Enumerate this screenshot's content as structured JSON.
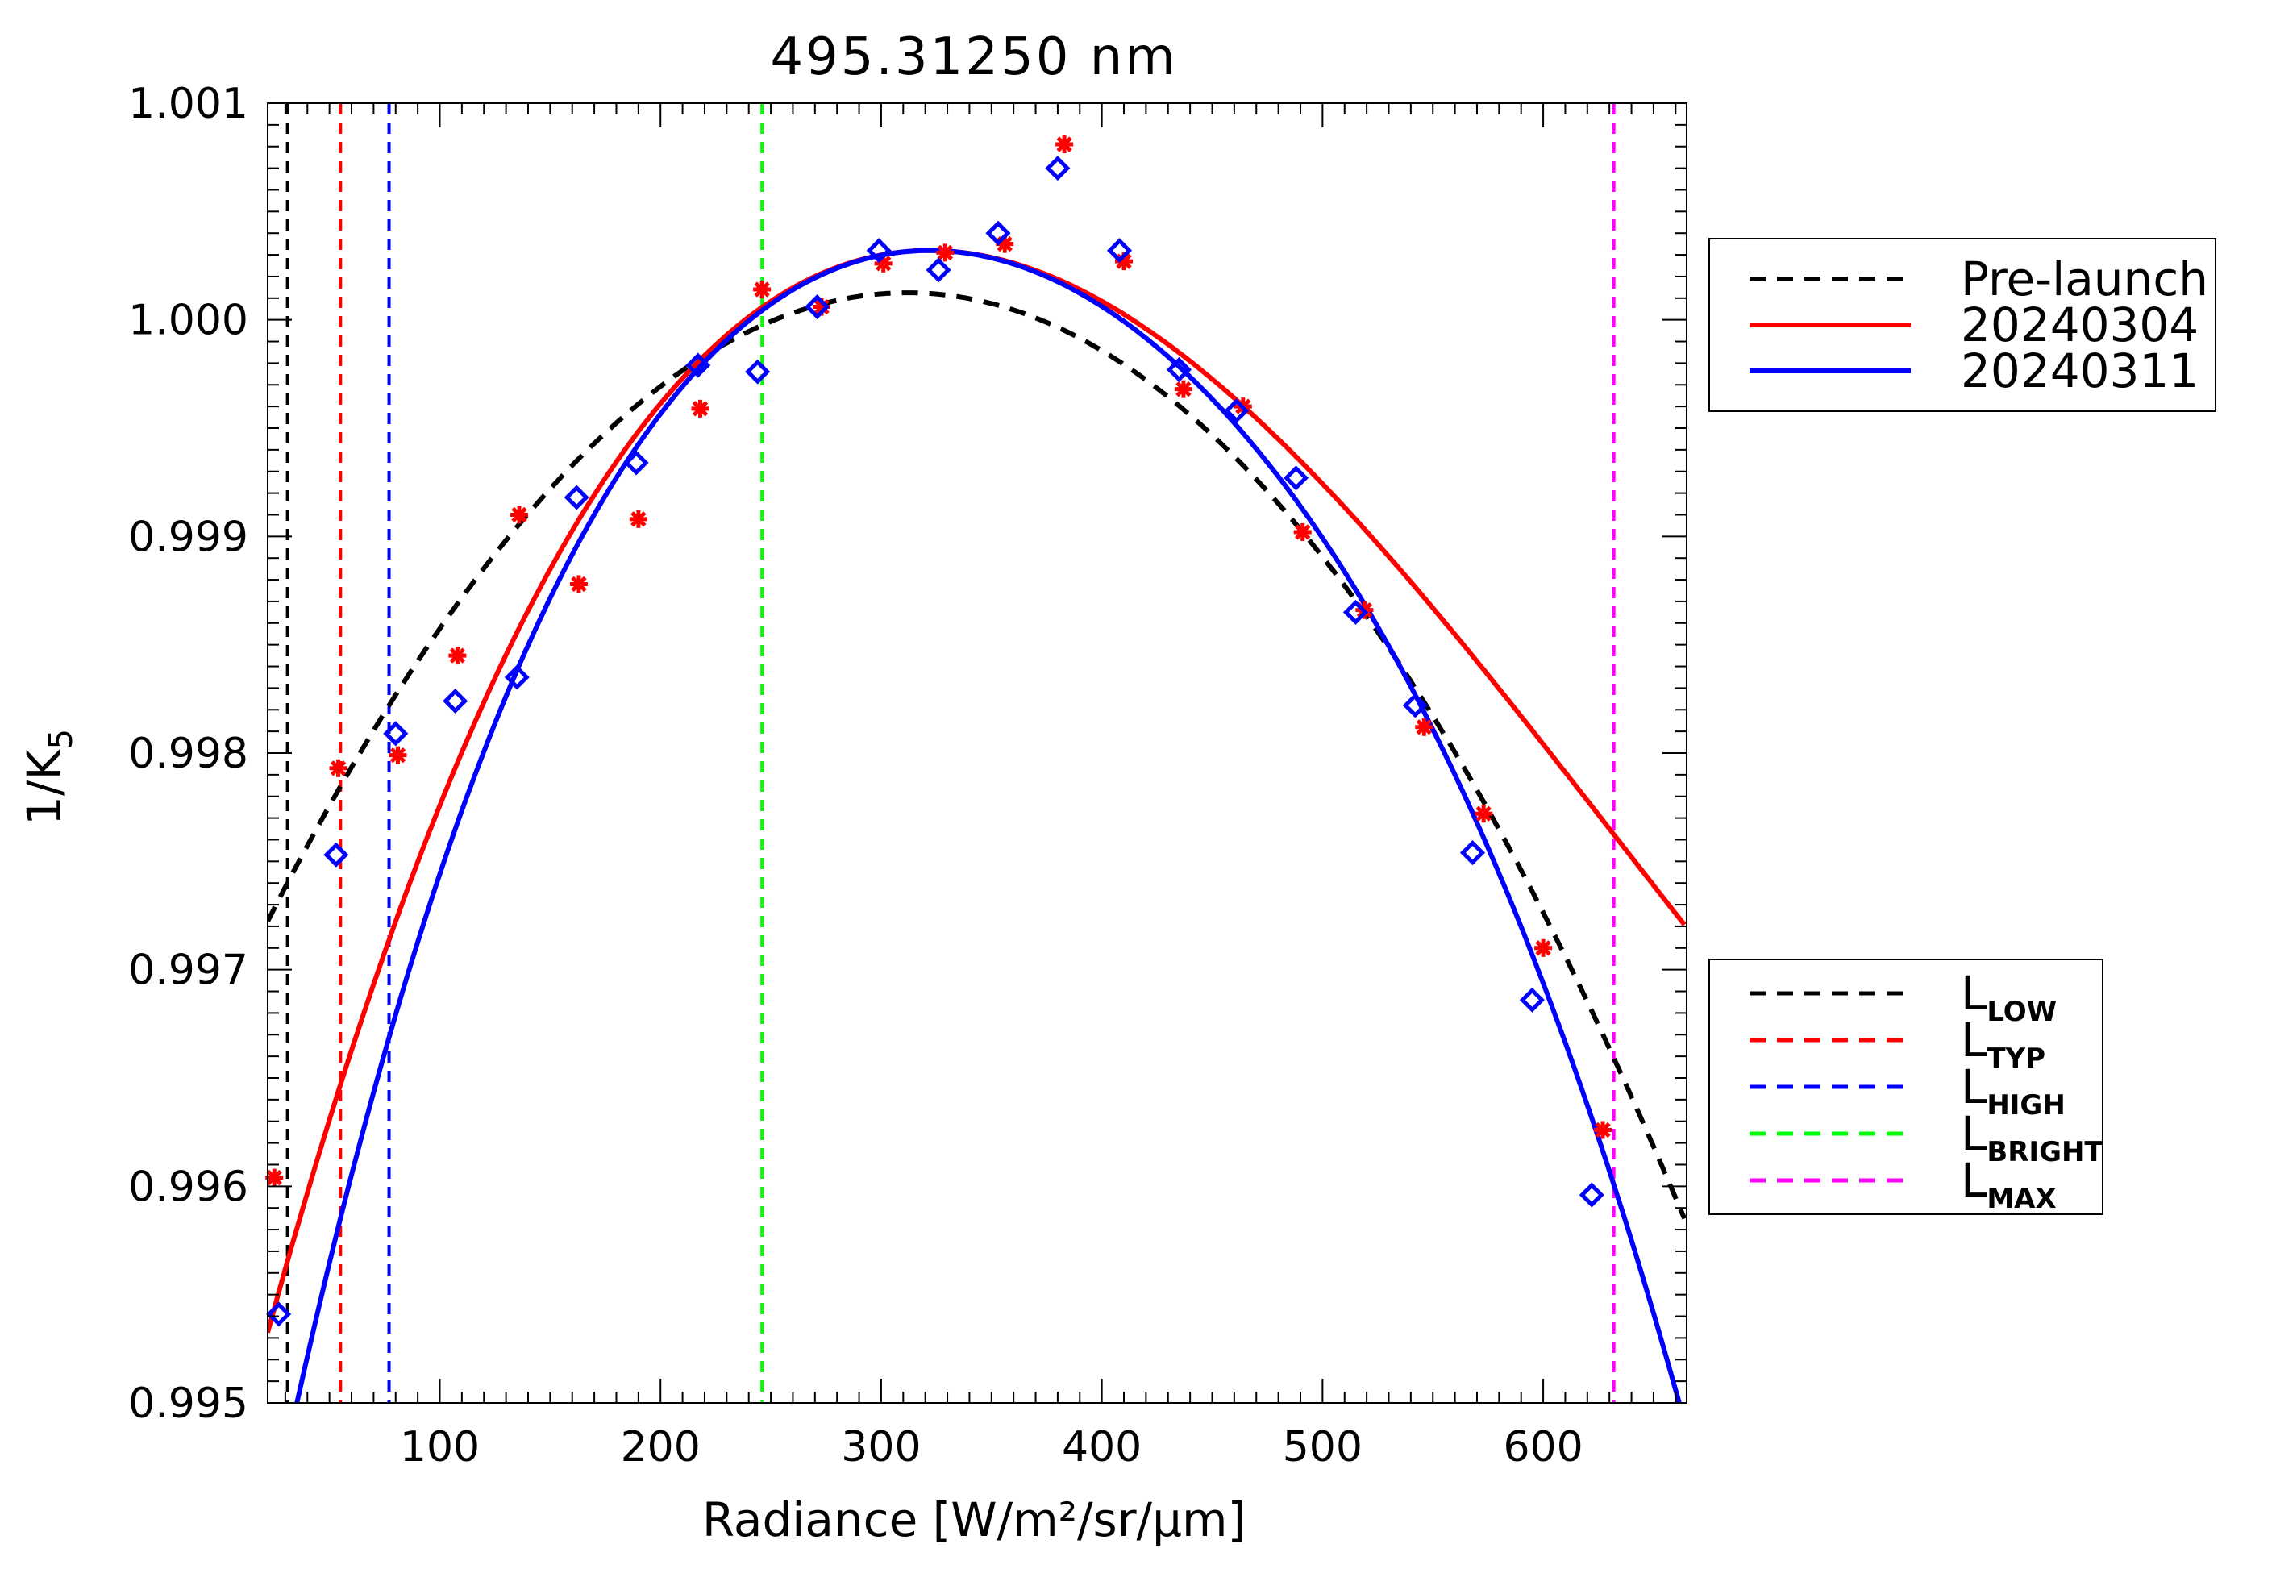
{
  "chart_data": {
    "type": "scatter",
    "title": "495.31250 nm",
    "xlabel": "Radiance [W/m²/sr/μm]",
    "ylabel": "1/K",
    "ylabel_sub": "5",
    "xlim": [
      22,
      665
    ],
    "ylim": [
      0.995,
      0.001
    ],
    "ylim_values": [
      0.995,
      1.001
    ],
    "x_ticks": [
      {
        "value": 100,
        "label": "100"
      },
      {
        "value": 200,
        "label": "200"
      },
      {
        "value": 300,
        "label": "300"
      },
      {
        "value": 400,
        "label": "400"
      },
      {
        "value": 500,
        "label": "500"
      },
      {
        "value": 600,
        "label": "600"
      }
    ],
    "y_ticks": [
      {
        "value": 0.995,
        "label": "0.995"
      },
      {
        "value": 0.996,
        "label": "0.996"
      },
      {
        "value": 0.997,
        "label": "0.997"
      },
      {
        "value": 0.998,
        "label": "0.998"
      },
      {
        "value": 0.999,
        "label": "0.999"
      },
      {
        "value": 1.0,
        "label": "1.000"
      },
      {
        "value": 1.001,
        "label": "1.001"
      }
    ],
    "grid": false,
    "fit_curves": [
      {
        "name": "Pre-launch",
        "color": "#000000",
        "dash": true,
        "fn": "black",
        "x_range": [
          22,
          665
        ]
      },
      {
        "name": "20240304",
        "color": "#ff0000",
        "dash": false,
        "fn": "red",
        "x_range": [
          22,
          665
        ]
      },
      {
        "name": "20240311",
        "color": "#0000ff",
        "dash": false,
        "fn": "blue",
        "x_range": [
          22,
          665
        ]
      }
    ],
    "series": [
      {
        "name": "20240304",
        "marker": "asterisk",
        "color": "#ff0000",
        "points": [
          [
            25,
            0.99604
          ],
          [
            54,
            0.99793
          ],
          [
            81,
            0.99799
          ],
          [
            108,
            0.99845
          ],
          [
            136,
            0.9991
          ],
          [
            163,
            0.99878
          ],
          [
            190,
            0.99908
          ],
          [
            218,
            0.99959
          ],
          [
            246,
            1.00014
          ],
          [
            273,
            1.00006
          ],
          [
            301,
            1.00026
          ],
          [
            329,
            1.00031
          ],
          [
            356,
            1.00035
          ],
          [
            383,
            1.00081
          ],
          [
            410,
            1.00027
          ],
          [
            437,
            0.99968
          ],
          [
            464,
            0.9996
          ],
          [
            491,
            0.99902
          ],
          [
            519,
            0.99866
          ],
          [
            546,
            0.99812
          ],
          [
            573,
            0.99772
          ],
          [
            600,
            0.9971
          ],
          [
            627,
            0.99626
          ]
        ]
      },
      {
        "name": "20240311",
        "marker": "diamond",
        "color": "#0000ff",
        "points": [
          [
            27,
            0.99541
          ],
          [
            53,
            0.99753
          ],
          [
            80,
            0.99809
          ],
          [
            107,
            0.99824
          ],
          [
            135,
            0.99835
          ],
          [
            162,
            0.99918
          ],
          [
            189,
            0.99934
          ],
          [
            217,
            0.99979
          ],
          [
            244,
            0.99976
          ],
          [
            271,
            1.00006
          ],
          [
            299,
            1.00032
          ],
          [
            326,
            1.00023
          ],
          [
            353,
            1.0004
          ],
          [
            380,
            1.0007
          ],
          [
            408,
            1.00032
          ],
          [
            435,
            0.99977
          ],
          [
            461,
            0.99958
          ],
          [
            488,
            0.99927
          ],
          [
            515,
            0.99865
          ],
          [
            542,
            0.99822
          ],
          [
            568,
            0.99754
          ],
          [
            595,
            0.99686
          ],
          [
            622,
            0.99596
          ]
        ]
      }
    ],
    "vertical_lines": [
      {
        "name": "L_LOW",
        "x": 31,
        "color": "#000000"
      },
      {
        "name": "L_TYP",
        "x": 55,
        "color": "#ff0000"
      },
      {
        "name": "L_HIGH",
        "x": 77,
        "color": "#0000ff"
      },
      {
        "name": "L_BRIGHT",
        "x": 246,
        "color": "#00ff00"
      },
      {
        "name": "L_MAX",
        "x": 632,
        "color": "#ff00ff"
      }
    ]
  },
  "legend_fits": [
    {
      "label": "Pre-launch",
      "color": "#000000",
      "dash": true
    },
    {
      "label": "20240304",
      "color": "#ff0000",
      "dash": false
    },
    {
      "label": "20240311",
      "color": "#0000ff",
      "dash": false
    }
  ],
  "legend_lines": [
    {
      "main": "L",
      "sub": "LOW",
      "color": "#000000"
    },
    {
      "main": "L",
      "sub": "TYP",
      "color": "#ff0000"
    },
    {
      "main": "L",
      "sub": "HIGH",
      "color": "#0000ff"
    },
    {
      "main": "L",
      "sub": "BRIGHT",
      "color": "#00ff00"
    },
    {
      "main": "L",
      "sub": "MAX",
      "color": "#ff00ff"
    }
  ]
}
